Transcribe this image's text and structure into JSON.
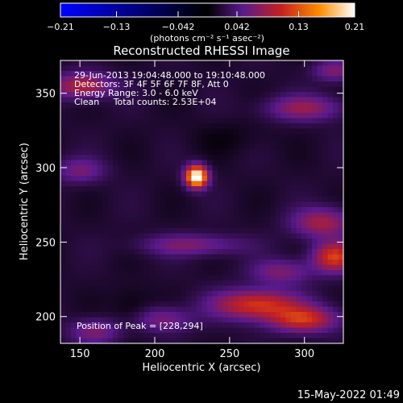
{
  "chart_data": {
    "type": "heatmap",
    "title": "Reconstructed RHESSI Image",
    "xlabel": "Heliocentric X (arcsec)",
    "ylabel": "Heliocentric Y (arcsec)",
    "xlim": [
      137,
      326
    ],
    "ylim": [
      182,
      372
    ],
    "xticks": [
      150,
      200,
      250,
      300
    ],
    "yticks": [
      200,
      250,
      300,
      350
    ],
    "colorbar": {
      "range": [
        -0.21,
        0.21
      ],
      "ticks": [
        -0.21,
        -0.13,
        -0.042,
        0.042,
        0.13,
        0.21
      ],
      "tick_labels": [
        "−0.21",
        "−0.13",
        "−0.042",
        "0.042",
        "0.13",
        "0.21"
      ],
      "unit_label": "(photons cm⁻² s⁻¹ asec⁻²)",
      "colormap": [
        "#0000ff",
        "#000000",
        "#5a1a8c",
        "#c42020",
        "#ff8c00",
        "#ffffff"
      ]
    },
    "annotations": [
      "29-Jun-2013 19:04:48.000 to 19:10:48.000",
      "Detectors: 3F 4F 5F 6F 7F 8F, Att 0",
      "Energy Range: 3.0 - 6.0 keV",
      "Clean     Total counts: 2.53E+04"
    ],
    "peak": {
      "x": 228,
      "y": 294,
      "label": "Position of Peak = [228,294]"
    },
    "sources": [
      {
        "x": 228,
        "y": 294,
        "value": 0.21,
        "sx": 5,
        "sy": 5
      },
      {
        "x": 152,
        "y": 355,
        "value": 0.08,
        "sx": 14,
        "sy": 6
      },
      {
        "x": 300,
        "y": 340,
        "value": 0.06,
        "sx": 18,
        "sy": 6
      },
      {
        "x": 225,
        "y": 248,
        "value": 0.05,
        "sx": 24,
        "sy": 5
      },
      {
        "x": 150,
        "y": 298,
        "value": 0.045,
        "sx": 12,
        "sy": 6
      },
      {
        "x": 312,
        "y": 263,
        "value": 0.07,
        "sx": 14,
        "sy": 7
      },
      {
        "x": 320,
        "y": 240,
        "value": 0.1,
        "sx": 10,
        "sy": 7
      },
      {
        "x": 285,
        "y": 230,
        "value": 0.05,
        "sx": 14,
        "sy": 6
      },
      {
        "x": 268,
        "y": 208,
        "value": 0.1,
        "sx": 20,
        "sy": 7
      },
      {
        "x": 300,
        "y": 198,
        "value": 0.09,
        "sx": 16,
        "sy": 6
      },
      {
        "x": 205,
        "y": 198,
        "value": 0.05,
        "sx": 14,
        "sy": 6
      },
      {
        "x": 160,
        "y": 190,
        "value": 0.05,
        "sx": 12,
        "sy": 6
      },
      {
        "x": 320,
        "y": 365,
        "value": 0.05,
        "sx": 10,
        "sy": 5
      },
      {
        "x": 185,
        "y": 205,
        "value": -0.02,
        "sx": 10,
        "sy": 10
      },
      {
        "x": 250,
        "y": 320,
        "value": -0.01,
        "sx": 20,
        "sy": 8
      }
    ]
  },
  "footer": {
    "timestamp": "15-May-2022 01:49"
  }
}
